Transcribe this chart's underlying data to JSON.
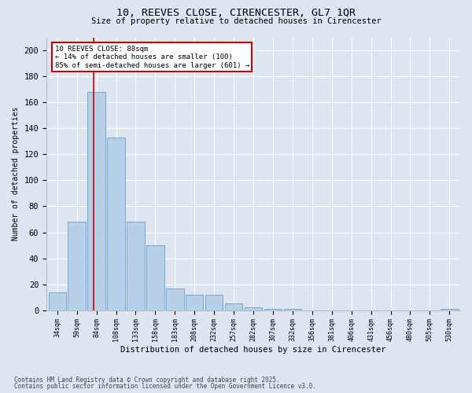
{
  "title1": "10, REEVES CLOSE, CIRENCESTER, GL7 1QR",
  "title2": "Size of property relative to detached houses in Cirencester",
  "xlabel": "Distribution of detached houses by size in Cirencester",
  "ylabel": "Number of detached properties",
  "categories": [
    "34sqm",
    "59sqm",
    "84sqm",
    "108sqm",
    "133sqm",
    "158sqm",
    "183sqm",
    "208sqm",
    "232sqm",
    "257sqm",
    "282sqm",
    "307sqm",
    "332sqm",
    "356sqm",
    "381sqm",
    "406sqm",
    "431sqm",
    "456sqm",
    "480sqm",
    "505sqm",
    "530sqm"
  ],
  "values": [
    14,
    68,
    168,
    133,
    68,
    50,
    17,
    12,
    12,
    5,
    2,
    1,
    1,
    0,
    0,
    0,
    0,
    0,
    0,
    0,
    1
  ],
  "bar_color": "#b8cfe8",
  "bar_edge_color": "#6a9fd0",
  "background_color": "#dde6f0",
  "grid_color": "#ffffff",
  "ylim": [
    0,
    210
  ],
  "yticks": [
    0,
    20,
    40,
    60,
    80,
    100,
    120,
    140,
    160,
    180,
    200
  ],
  "annotation_text": "10 REEVES CLOSE: 88sqm\n← 14% of detached houses are smaller (100)\n85% of semi-detached houses are larger (601) →",
  "annotation_box_color": "#ffffff",
  "annotation_border_color": "#cc0000",
  "footer1": "Contains HM Land Registry data © Crown copyright and database right 2025.",
  "footer2": "Contains public sector information licensed under the Open Government Licence v3.0."
}
